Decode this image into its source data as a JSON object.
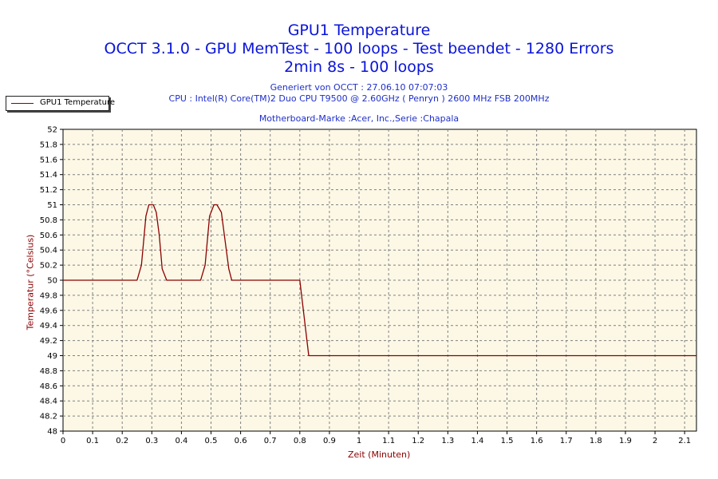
{
  "header": {
    "title": "GPU1 Temperature",
    "subtitle1": "OCCT 3.1.0 - GPU MemTest - 100 loops - Test beendet - 1280 Errors",
    "subtitle2": "2min 8s - 100 loops",
    "generated": "Generiert von OCCT : 27.06.10 07:07:03",
    "cpu": "CPU : Intel(R) Core(TM)2 Duo CPU T9500 @ 2.60GHz ( Penryn ) 2600 MHz FSB 200MHz",
    "motherboard": "Motherboard-Marke :Acer, Inc.,Serie :Chapala"
  },
  "colors": {
    "title": "#0a14d8",
    "series": "#8b0000",
    "plot_background": "#fdf8e6",
    "grid": "#808080"
  },
  "chart_data": {
    "type": "line",
    "title": "GPU1 Temperature",
    "xlabel": "Zeit (Minuten)",
    "ylabel": "Temperatur (°Celsius)",
    "xlim": [
      0,
      2.14
    ],
    "ylim": [
      48,
      52
    ],
    "xticks": [
      "0",
      "0.1",
      "0.2",
      "0.3",
      "0.4",
      "0.5",
      "0.6",
      "0.7",
      "0.8",
      "0.9",
      "1",
      "1.1",
      "1.2",
      "1.3",
      "1.4",
      "1.5",
      "1.6",
      "1.7",
      "1.8",
      "1.9",
      "2",
      "2.1"
    ],
    "yticks": [
      "48",
      "48.2",
      "48.4",
      "48.6",
      "48.8",
      "49",
      "49.2",
      "49.4",
      "49.6",
      "49.8",
      "50",
      "50.2",
      "50.4",
      "50.6",
      "50.8",
      "51",
      "51.2",
      "51.4",
      "51.6",
      "51.8",
      "52"
    ],
    "grid": true,
    "legend_position": "top-left",
    "series": [
      {
        "name": "GPU1 Temperature",
        "x": [
          0,
          0.25,
          0.265,
          0.28,
          0.29,
          0.305,
          0.315,
          0.325,
          0.335,
          0.35,
          0.36,
          0.8,
          0.815,
          0.83,
          2.14
        ],
        "y": [
          50,
          50,
          50.2,
          50.85,
          51,
          51,
          50.9,
          50.6,
          50.15,
          50,
          50,
          50,
          49.5,
          49,
          49
        ],
        "note_second_peak": false
      }
    ]
  }
}
